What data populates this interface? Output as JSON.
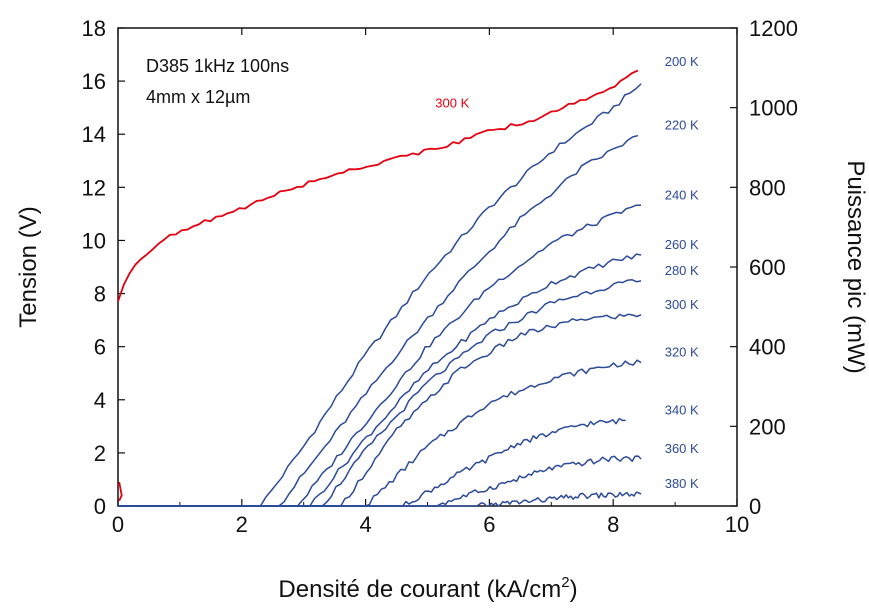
{
  "chart_data": {
    "type": "line",
    "annotations": [
      "D385 1kHz 100ns",
      "4mm x 12µm"
    ],
    "xlabel": "Densité de courant (kA/cm",
    "xlabel_sup": "2",
    "xlabel_end": ")",
    "ylabel_left": "Tension (V)",
    "ylabel_right": "Puissance pic (mW)",
    "xlim": [
      0,
      10
    ],
    "ylim_left": [
      0,
      18
    ],
    "ylim_right": [
      0,
      1200
    ],
    "x_ticks": [
      "0",
      "2",
      "4",
      "6",
      "8",
      "10"
    ],
    "y_left_ticks": [
      "0",
      "2",
      "4",
      "6",
      "8",
      "10",
      "12",
      "14",
      "16",
      "18"
    ],
    "y_right_ticks": [
      "0",
      "200",
      "400",
      "600",
      "800",
      "1000",
      "1200"
    ],
    "grid": false,
    "voltage_series": {
      "name": "300 K",
      "axis": "left",
      "color": "#e3000f",
      "x": [
        0,
        0.03,
        0.1,
        0.2,
        0.4,
        0.6,
        0.8,
        1.0,
        1.5,
        2.0,
        2.5,
        3.0,
        3.5,
        4.0,
        4.5,
        5.0,
        5.5,
        6.0,
        6.5,
        7.0,
        7.5,
        8.0,
        8.4
      ],
      "y": [
        7.7,
        8.1,
        8.4,
        8.9,
        9.4,
        9.8,
        10.1,
        10.3,
        10.8,
        11.2,
        11.7,
        12.1,
        12.5,
        12.8,
        13.1,
        13.4,
        13.7,
        14.1,
        14.4,
        14.8,
        15.3,
        15.8,
        16.4
      ]
    },
    "power_series": [
      {
        "name": "200 K",
        "color": "#2c4a9a",
        "x": [
          2.3,
          3,
          4,
          5,
          6,
          7,
          8,
          8.45
        ],
        "y": [
          0,
          150,
          380,
          580,
          750,
          890,
          1000,
          1060
        ]
      },
      {
        "name": "220 K",
        "color": "#2c4a9a",
        "x": [
          2.6,
          3.5,
          4.5,
          5.5,
          6.5,
          7.5,
          8.4
        ],
        "y": [
          0,
          180,
          380,
          560,
          720,
          850,
          930
        ]
      },
      {
        "name": "240 K",
        "color": "#2c4a9a",
        "x": [
          2.9,
          4,
          5,
          6,
          7,
          8,
          8.45
        ],
        "y": [
          0,
          210,
          400,
          550,
          660,
          730,
          755
        ]
      },
      {
        "name": "260 K",
        "color": "#2c4a9a",
        "x": [
          3.1,
          4,
          5,
          6,
          7,
          8,
          8.45
        ],
        "y": [
          0,
          170,
          340,
          470,
          560,
          615,
          630
        ]
      },
      {
        "name": "280 K",
        "color": "#2c4a9a",
        "x": [
          3.3,
          4,
          5,
          6,
          7,
          8,
          8.45
        ],
        "y": [
          0,
          140,
          310,
          430,
          510,
          555,
          565
        ]
      },
      {
        "name": "300 K",
        "color": "#2c4a9a",
        "x": [
          3.6,
          4.5,
          5.5,
          6.5,
          7.5,
          8.45
        ],
        "y": [
          0,
          190,
          340,
          430,
          470,
          480
        ]
      },
      {
        "name": "320 K",
        "color": "#2c4a9a",
        "x": [
          4.0,
          5,
          6,
          7,
          8,
          8.45
        ],
        "y": [
          0,
          150,
          260,
          320,
          355,
          360
        ]
      },
      {
        "name": "340 K",
        "color": "#2c4a9a",
        "x": [
          4.6,
          5.5,
          6.5,
          7.5,
          8.2
        ],
        "y": [
          0,
          80,
          160,
          205,
          215
        ]
      },
      {
        "name": "360 K",
        "color": "#2c4a9a",
        "x": [
          5.1,
          6,
          7,
          8,
          8.45
        ],
        "y": [
          0,
          45,
          95,
          120,
          118
        ]
      },
      {
        "name": "380 K",
        "color": "#2c4a9a",
        "x": [
          5.8,
          6.5,
          7.5,
          8.45
        ],
        "y": [
          0,
          10,
          25,
          30
        ]
      }
    ]
  }
}
